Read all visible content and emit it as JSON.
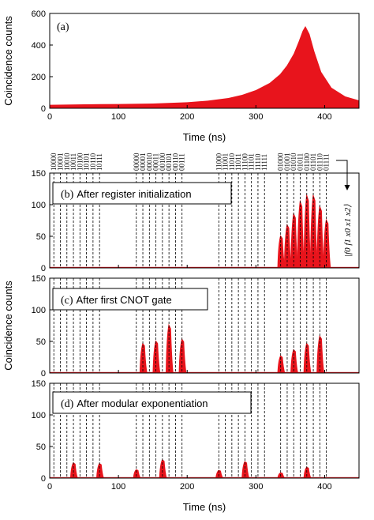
{
  "colors": {
    "data": "#e8141c",
    "axis": "#000000"
  },
  "shared": {
    "ylabel_bottom": "Coincidence counts",
    "basis_label": "|f0 f1 x0 x1 x2⟩"
  },
  "chart_data": [
    {
      "type": "area",
      "panel": "(a)",
      "ylabel": "Coincidence counts",
      "xlabel": "Time (ns)",
      "xlim": [
        0,
        450
      ],
      "ylim": [
        0,
        600
      ],
      "xticks": [
        0,
        100,
        200,
        300,
        400
      ],
      "yticks": [
        0,
        200,
        400,
        600
      ],
      "x": [
        0,
        50,
        100,
        150,
        200,
        230,
        260,
        280,
        300,
        320,
        335,
        345,
        355,
        362,
        368,
        372,
        378,
        385,
        395,
        410,
        430,
        450
      ],
      "values": [
        22,
        25,
        27,
        30,
        38,
        48,
        65,
        85,
        115,
        160,
        215,
        270,
        345,
        420,
        490,
        520,
        470,
        360,
        230,
        130,
        75,
        50
      ]
    },
    {
      "type": "bar",
      "panel": "(b)",
      "label": "After register initialization",
      "xlim": [
        0,
        450
      ],
      "ylim": [
        0,
        150
      ],
      "yticks": [
        0,
        50,
        100,
        150
      ],
      "top_labels": [
        "10000",
        "10001",
        "10010",
        "10011",
        "10100",
        "10101",
        "10110",
        "10111",
        "00000",
        "00001",
        "00010",
        "00011",
        "00100",
        "00101",
        "00110",
        "00111",
        "11000",
        "11001",
        "11010",
        "11011",
        "11100",
        "11101",
        "11110",
        "11111",
        "01000",
        "01001",
        "01010",
        "01011",
        "01100",
        "01101",
        "01110",
        "01111"
      ],
      "bin_centers": [
        6,
        15.5,
        25,
        34.5,
        44,
        53.5,
        63,
        72.5,
        126,
        135.5,
        145,
        154.5,
        164,
        173.5,
        183,
        192.5,
        246,
        255.5,
        265,
        274.5,
        284,
        293.5,
        303,
        312.5,
        336,
        345.5,
        355,
        364.5,
        374,
        383.5,
        393,
        402.5
      ],
      "values": [
        2,
        2,
        2,
        2,
        2,
        2,
        2,
        2,
        2,
        2,
        2,
        2,
        2,
        2,
        2,
        2,
        2,
        2,
        2,
        2,
        2,
        2,
        2,
        2,
        52,
        70,
        88,
        108,
        118,
        118,
        100,
        78
      ]
    },
    {
      "type": "bar",
      "panel": "(c)",
      "label": "After first CNOT gate",
      "xlim": [
        0,
        450
      ],
      "ylim": [
        0,
        150
      ],
      "yticks": [
        0,
        50,
        100,
        150
      ],
      "bin_centers": [
        126,
        135.5,
        145,
        154.5,
        164,
        173.5,
        183,
        192.5,
        336,
        345.5,
        355,
        364.5,
        374,
        383.5,
        393,
        402.5
      ],
      "values": [
        2,
        48,
        2,
        52,
        2,
        78,
        2,
        55,
        28,
        2,
        38,
        2,
        48,
        2,
        60,
        2
      ]
    },
    {
      "type": "bar",
      "panel": "(d)",
      "label": "After modular exponentiation",
      "xlabel": "Time (ns)",
      "xlim": [
        0,
        450
      ],
      "ylim": [
        0,
        150
      ],
      "xticks": [
        0,
        100,
        200,
        300,
        400
      ],
      "yticks": [
        0,
        50,
        100,
        150
      ],
      "bin_centers": [
        34.5,
        72.5,
        126,
        164,
        246,
        284,
        336,
        374
      ],
      "values": [
        25,
        24,
        14,
        30,
        13,
        27,
        9,
        18
      ]
    }
  ]
}
